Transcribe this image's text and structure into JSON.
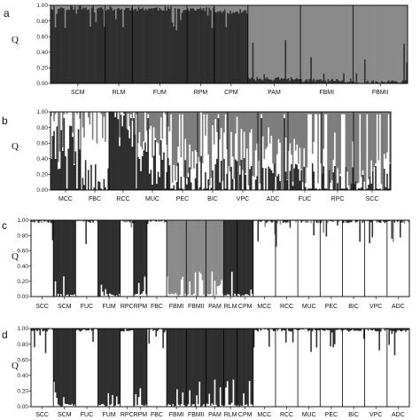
{
  "chart_data": [
    {
      "panel": "a",
      "type": "bar",
      "ylabel": "Q",
      "ylim": [
        0,
        1
      ],
      "yticks": [
        "0.00",
        "0.20",
        "0.40",
        "0.60",
        "0.80",
        "1.00"
      ],
      "series": [
        {
          "color": "#2f2f2f"
        },
        {
          "color": "#8a8a8a"
        }
      ],
      "groups": [
        {
          "label": "SCM",
          "cluster1": 0.97
        },
        {
          "label": "RLM",
          "cluster1": 0.96
        },
        {
          "label": "FUM",
          "cluster1": 0.96
        },
        {
          "label": "RPM",
          "cluster1": 0.95
        },
        {
          "label": "CPM",
          "cluster1": 0.92
        },
        {
          "label": "PAM",
          "cluster1": 0.06
        },
        {
          "label": "FBMI",
          "cluster1": 0.04
        },
        {
          "label": "FBMII",
          "cluster1": 0.02
        }
      ]
    },
    {
      "panel": "b",
      "type": "bar",
      "ylabel": "Q",
      "ylim": [
        0,
        1
      ],
      "yticks": [
        "0.00",
        "0.20",
        "0.40",
        "0.60",
        "0.80",
        "1.00"
      ],
      "series": [
        {
          "color": "#2f2f2f"
        },
        {
          "color": "#ffffff"
        },
        {
          "color": "#7d7d7d"
        }
      ],
      "groups": [
        {
          "label": "MCC",
          "cluster1": 0.55,
          "cluster2": 0.3
        },
        {
          "label": "FBC",
          "cluster1": 0.1,
          "cluster2": 0.85
        },
        {
          "label": "RCC",
          "cluster1": 0.85,
          "cluster2": 0.1
        },
        {
          "label": "MUC",
          "cluster1": 0.35,
          "cluster2": 0.3
        },
        {
          "label": "PEC",
          "cluster1": 0.15,
          "cluster2": 0.35
        },
        {
          "label": "BIC",
          "cluster1": 0.15,
          "cluster2": 0.3
        },
        {
          "label": "VPC",
          "cluster1": 0.12,
          "cluster2": 0.3
        },
        {
          "label": "ADC",
          "cluster1": 0.1,
          "cluster2": 0.25
        },
        {
          "label": "FUC",
          "cluster1": 0.08,
          "cluster2": 0.25
        },
        {
          "label": "RPC",
          "cluster1": 0.05,
          "cluster2": 0.15
        },
        {
          "label": "SCC",
          "cluster1": 0.04,
          "cluster2": 0.1
        }
      ]
    },
    {
      "panel": "c",
      "type": "bar",
      "ylabel": "Q",
      "ylim": [
        0,
        1
      ],
      "yticks": [
        "0.00",
        "0.20",
        "0.40",
        "0.60",
        "0.80",
        "1.00"
      ],
      "series": [
        {
          "color": "#ffffff"
        },
        {
          "color": "#2f2f2f"
        },
        {
          "color": "#8a8a8a"
        }
      ],
      "groups": [
        {
          "label": "SCC",
          "main": 0
        },
        {
          "label": "SCM",
          "main": 1
        },
        {
          "label": "FUC",
          "main": 0
        },
        {
          "label": "FUM",
          "main": 1
        },
        {
          "label": "RPC",
          "main": 0
        },
        {
          "label": "RPM",
          "main": 1
        },
        {
          "label": "FBC",
          "main": 0
        },
        {
          "label": "FBMI",
          "main": 2
        },
        {
          "label": "FBMII",
          "main": 2
        },
        {
          "label": "PAM",
          "main": 2
        },
        {
          "label": "RLM",
          "main": 1
        },
        {
          "label": "CPM",
          "main": 1
        },
        {
          "label": "MCC",
          "main": 0
        },
        {
          "label": "RCC",
          "main": 0
        },
        {
          "label": "MUC",
          "main": 0
        },
        {
          "label": "PEC",
          "main": 0
        },
        {
          "label": "BIC",
          "main": 0
        },
        {
          "label": "VPC",
          "main": 0
        },
        {
          "label": "ADC",
          "main": 0
        }
      ]
    },
    {
      "panel": "d",
      "type": "bar",
      "ylabel": "Q",
      "ylim": [
        0,
        1
      ],
      "yticks": [
        "0.00",
        "0.20",
        "0.40",
        "0.60",
        "0.80",
        "1.00"
      ],
      "series": [
        {
          "color": "#ffffff"
        },
        {
          "color": "#2f2f2f"
        }
      ],
      "groups": [
        {
          "label": "SCC",
          "main": 0
        },
        {
          "label": "SCM",
          "main": 1
        },
        {
          "label": "FUC",
          "main": 0
        },
        {
          "label": "FUM",
          "main": 1
        },
        {
          "label": "RPC",
          "main": 0
        },
        {
          "label": "RPM",
          "main": 1
        },
        {
          "label": "FBC",
          "main": 0
        },
        {
          "label": "FBMI",
          "main": 1
        },
        {
          "label": "FBMII",
          "main": 1
        },
        {
          "label": "PAM",
          "main": 1
        },
        {
          "label": "RLM",
          "main": 1
        },
        {
          "label": "CPM",
          "main": 1
        },
        {
          "label": "MCC",
          "main": 0
        },
        {
          "label": "RCC",
          "main": 0
        },
        {
          "label": "MUC",
          "main": 0
        },
        {
          "label": "PEC",
          "main": 0
        },
        {
          "label": "BIC",
          "main": 0
        },
        {
          "label": "VPC",
          "main": 0
        },
        {
          "label": "ADC",
          "main": 0
        }
      ]
    }
  ]
}
